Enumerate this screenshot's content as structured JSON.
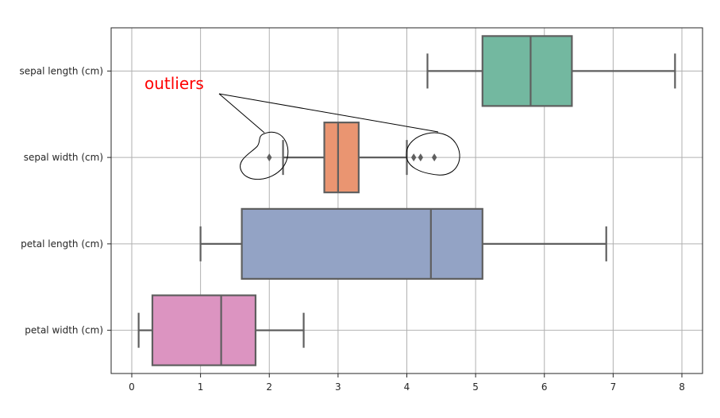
{
  "chart_data": {
    "type": "boxplot",
    "orientation": "horizontal",
    "grid": true,
    "xlim": [
      -0.3,
      8.3
    ],
    "xticks": [
      0,
      1,
      2,
      3,
      4,
      5,
      6,
      7,
      8
    ],
    "categories": [
      "sepal length (cm)",
      "sepal width (cm)",
      "petal length (cm)",
      "petal width (cm)"
    ],
    "boxes": [
      {
        "label": "sepal length (cm)",
        "whisker_low": 4.3,
        "q1": 5.1,
        "median": 5.8,
        "q3": 6.4,
        "whisker_high": 7.9,
        "outliers": [],
        "color": "#73b8a0"
      },
      {
        "label": "sepal width (cm)",
        "whisker_low": 2.2,
        "q1": 2.8,
        "median": 3.0,
        "q3": 3.3,
        "whisker_high": 4.0,
        "outliers": [
          2.0,
          4.1,
          4.2,
          4.4
        ],
        "color": "#ea9571"
      },
      {
        "label": "petal length (cm)",
        "whisker_low": 1.0,
        "q1": 1.6,
        "median": 4.35,
        "q3": 5.1,
        "whisker_high": 6.9,
        "outliers": [],
        "color": "#93a3c5"
      },
      {
        "label": "petal width (cm)",
        "whisker_low": 0.1,
        "q1": 0.3,
        "median": 1.3,
        "q3": 1.8,
        "whisker_high": 2.5,
        "outliers": [],
        "color": "#dc94c1"
      }
    ],
    "annotations": [
      {
        "text": "outliers",
        "color": "#ff0000",
        "targets": [
          "sepal width (cm) low outliers",
          "sepal width (cm) high outliers"
        ]
      }
    ]
  }
}
